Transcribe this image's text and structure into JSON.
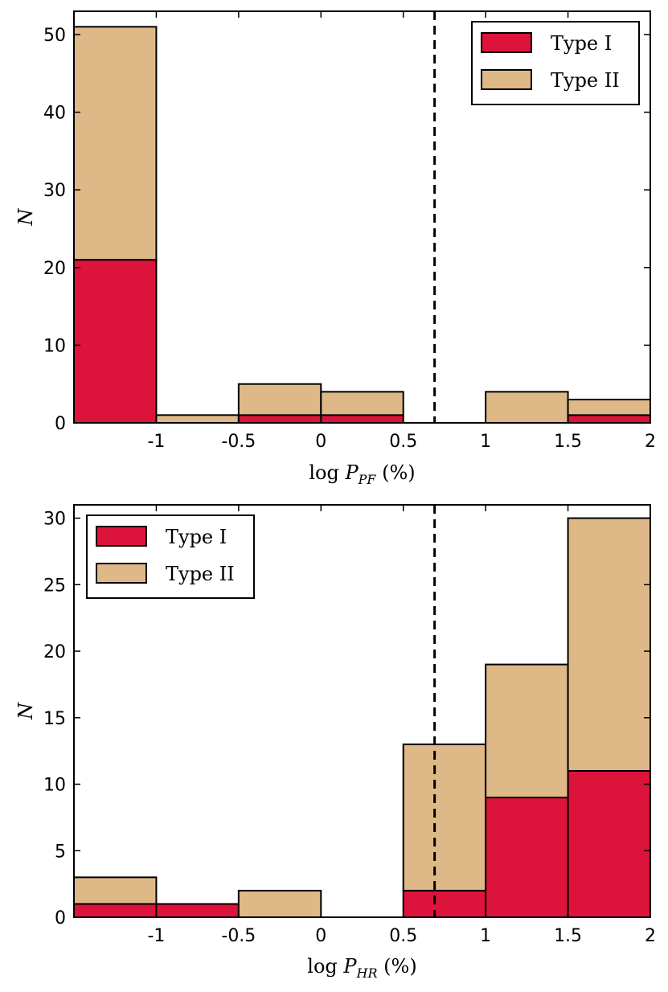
{
  "colors": {
    "type_i": "#dc143c",
    "type_ii": "#deb887",
    "threshold_line": "#000000"
  },
  "chart_data": [
    {
      "type": "bar",
      "stacked": true,
      "bin_edges": [
        -1.5,
        -1.0,
        -0.5,
        0.0,
        0.5,
        1.0,
        1.5,
        2.0
      ],
      "xlabel": {
        "prefix": "log",
        "var": "P",
        "sub": "PF",
        "suffix": "(%)"
      },
      "ylabel": "N",
      "xlim": [
        -1.5,
        2.0
      ],
      "ylim": [
        0,
        53
      ],
      "xticks": [
        -1,
        -0.5,
        0,
        0.5,
        1,
        1.5,
        2
      ],
      "xtick_labels": [
        "-1",
        "-0.5",
        "0",
        "0.5",
        "1",
        "1.5",
        "2"
      ],
      "yticks": [
        0,
        10,
        20,
        30,
        40,
        50
      ],
      "ytick_labels": [
        "0",
        "10",
        "20",
        "30",
        "40",
        "50"
      ],
      "threshold_x": 0.69,
      "legend": {
        "position": "top-right",
        "entries": [
          "Type I",
          "Type II"
        ]
      },
      "series": [
        {
          "name": "Type I",
          "values": [
            21,
            0,
            1,
            1,
            0,
            0,
            1
          ]
        },
        {
          "name": "Type II",
          "values": [
            30,
            1,
            4,
            3,
            0,
            4,
            2
          ]
        }
      ],
      "totals": [
        51,
        1,
        5,
        4,
        0,
        4,
        3
      ],
      "grid": false
    },
    {
      "type": "bar",
      "stacked": true,
      "bin_edges": [
        -1.5,
        -1.0,
        -0.5,
        0.0,
        0.5,
        1.0,
        1.5,
        2.0
      ],
      "xlabel": {
        "prefix": "log",
        "var": "P",
        "sub": "HR",
        "suffix": "(%)"
      },
      "ylabel": "N",
      "xlim": [
        -1.5,
        2.0
      ],
      "ylim": [
        0,
        31
      ],
      "xticks": [
        -1,
        -0.5,
        0,
        0.5,
        1,
        1.5,
        2
      ],
      "xtick_labels": [
        "-1",
        "-0.5",
        "0",
        "0.5",
        "1",
        "1.5",
        "2"
      ],
      "yticks": [
        0,
        5,
        10,
        15,
        20,
        25,
        30
      ],
      "ytick_labels": [
        "0",
        "5",
        "10",
        "15",
        "20",
        "25",
        "30"
      ],
      "threshold_x": 0.69,
      "legend": {
        "position": "top-left",
        "entries": [
          "Type I",
          "Type II"
        ]
      },
      "series": [
        {
          "name": "Type I",
          "values": [
            1,
            1,
            0,
            0,
            2,
            9,
            11
          ]
        },
        {
          "name": "Type II",
          "values": [
            2,
            0,
            2,
            0,
            11,
            10,
            19
          ]
        }
      ],
      "totals": [
        3,
        1,
        2,
        0,
        13,
        19,
        30
      ],
      "grid": false
    }
  ]
}
